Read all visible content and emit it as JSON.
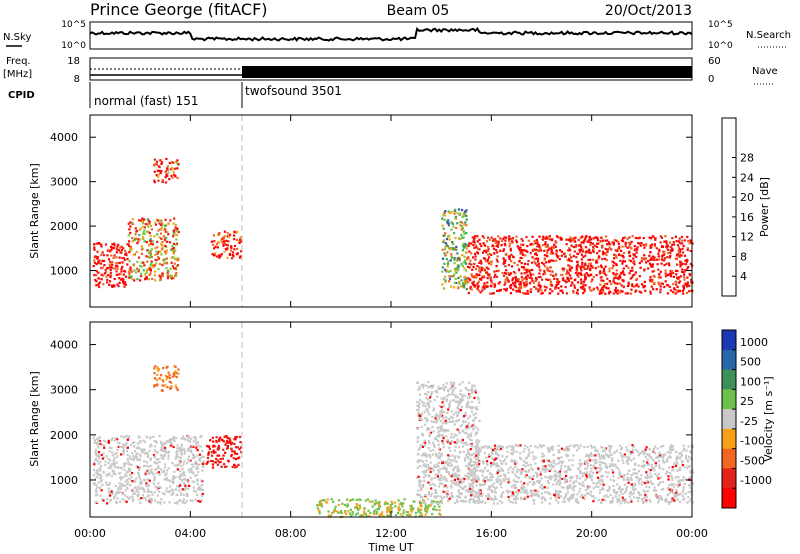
{
  "header": {
    "station": "Prince George (fitACF)",
    "beam": "Beam 05",
    "date": "20/Oct/2013"
  },
  "summary_panels": {
    "nsky_label": "N.Sky",
    "nsearch_label": "N.Search",
    "noise_ticks_left": [
      "10^5",
      "10^0"
    ],
    "noise_ticks_right": [
      "10^5",
      "10^0"
    ],
    "freq_label": "Freq.",
    "freq_unit": "[MHz]",
    "freq_ticks": [
      "18",
      "8"
    ],
    "nave_label": "Nave",
    "nave_ticks": [
      "60",
      "0"
    ],
    "cpid_label": "CPID",
    "cpid_modes": [
      {
        "label": "normal (fast) 151",
        "start_hour": 0,
        "end_hour": 6
      },
      {
        "label": "twofsound 3501",
        "start_hour": 6,
        "end_hour": 24
      }
    ]
  },
  "power_panel": {
    "ylabel": "Slant Range [km]",
    "yticks": [
      "1000",
      "2000",
      "3000",
      "4000"
    ],
    "colorbar_label": "Power [dB]",
    "colorbar_ticks": [
      "4",
      "8",
      "12",
      "16",
      "20",
      "24",
      "28"
    ],
    "colors": [
      "#0000ff",
      "#3a4fb5",
      "#3f8f5a",
      "#3cb64a",
      "#7ac943",
      "#e8a717",
      "#f26522",
      "#e32219",
      "#ff0000"
    ]
  },
  "velocity_panel": {
    "ylabel": "Slant Range [km]",
    "yticks": [
      "1000",
      "2000",
      "3000",
      "4000"
    ],
    "colorbar_label": "Velocity [m s⁻¹]",
    "colorbar_ticks": [
      "1000",
      "500",
      "100",
      "25",
      "-25",
      "-100",
      "-500",
      "-1000"
    ],
    "colors": [
      "#1a3ab5",
      "#2a67a8",
      "#3f8f5a",
      "#6cc24a",
      "#c8c8c8",
      "#f7a11a",
      "#f26522",
      "#e32219",
      "#ff0000"
    ]
  },
  "time_axis": {
    "xlabel": "Time UT",
    "xticks": [
      "00:00",
      "04:00",
      "08:00",
      "12:00",
      "16:00",
      "20:00",
      "00:00"
    ]
  },
  "chart_data": {
    "type": "heatmap",
    "x_range_hours": [
      0,
      24
    ],
    "y_range_km": [
      180,
      4500
    ],
    "power_regions": [
      {
        "t0": 0.1,
        "t1": 1.5,
        "r0": 650,
        "r1": 1650,
        "value": 28
      },
      {
        "t0": 1.5,
        "t1": 3.5,
        "r0": 800,
        "r1": 2200,
        "value": 20
      },
      {
        "t0": 2.5,
        "t1": 3.5,
        "r0": 3000,
        "r1": 3550,
        "value": 24
      },
      {
        "t0": 4.8,
        "t1": 6.0,
        "r0": 1300,
        "r1": 1900,
        "value": 26
      },
      {
        "t0": 14.0,
        "t1": 15.0,
        "r0": 600,
        "r1": 2400,
        "value": 12
      },
      {
        "t0": 15.0,
        "t1": 24.0,
        "r0": 500,
        "r1": 1800,
        "value": 28
      }
    ],
    "velocity_regions": [
      {
        "t0": 0.1,
        "t1": 4.5,
        "r0": 500,
        "r1": 2000,
        "value": 0
      },
      {
        "t0": 4.6,
        "t1": 6.0,
        "r0": 1300,
        "r1": 2000,
        "value": -800
      },
      {
        "t0": 2.5,
        "t1": 3.5,
        "r0": 3000,
        "r1": 3550,
        "value": -400
      },
      {
        "t0": 9.0,
        "t1": 14.0,
        "r0": 200,
        "r1": 600,
        "value": 100
      },
      {
        "t0": 13.0,
        "t1": 15.5,
        "r0": 500,
        "r1": 3200,
        "value": 0
      },
      {
        "t0": 15.0,
        "t1": 24.0,
        "r0": 500,
        "r1": 1800,
        "value": 0
      }
    ]
  }
}
